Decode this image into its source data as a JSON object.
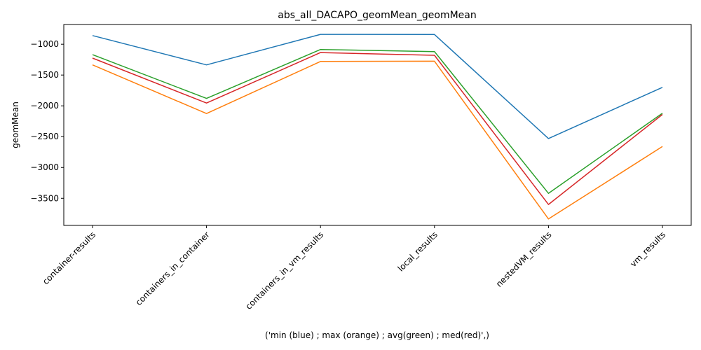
{
  "chart_data": {
    "type": "line",
    "title": "abs_all_DACAPO_geomMean_geomMean",
    "xlabel": "('min (blue) ; max (orange) ; avg(green) ; med(red)',)",
    "ylabel": "geomMean",
    "categories": [
      "container-results",
      "containers_in_container",
      "containers_in_vm_results",
      "local_results",
      "nestedVM_results",
      "vm_results"
    ],
    "yticks": [
      -1000,
      -1500,
      -2000,
      -2500,
      -3000,
      -3500
    ],
    "ytick_labels": [
      "−1000",
      "−1500",
      "−2000",
      "−2500",
      "−3000",
      "−3500"
    ],
    "ylim": [
      -3940,
      -680
    ],
    "grid": false,
    "series": [
      {
        "color": "#1f77b4",
        "values": [
          -860,
          -1335,
          -840,
          -842,
          -2530,
          -1700
        ]
      },
      {
        "color": "#ff7f0e",
        "values": [
          -1335,
          -2125,
          -1280,
          -1275,
          -3835,
          -2660
        ]
      },
      {
        "color": "#2ca02c",
        "values": [
          -1170,
          -1880,
          -1085,
          -1120,
          -3420,
          -2120
        ]
      },
      {
        "color": "#d62728",
        "values": [
          -1225,
          -1955,
          -1135,
          -1180,
          -3600,
          -2140
        ]
      }
    ]
  }
}
